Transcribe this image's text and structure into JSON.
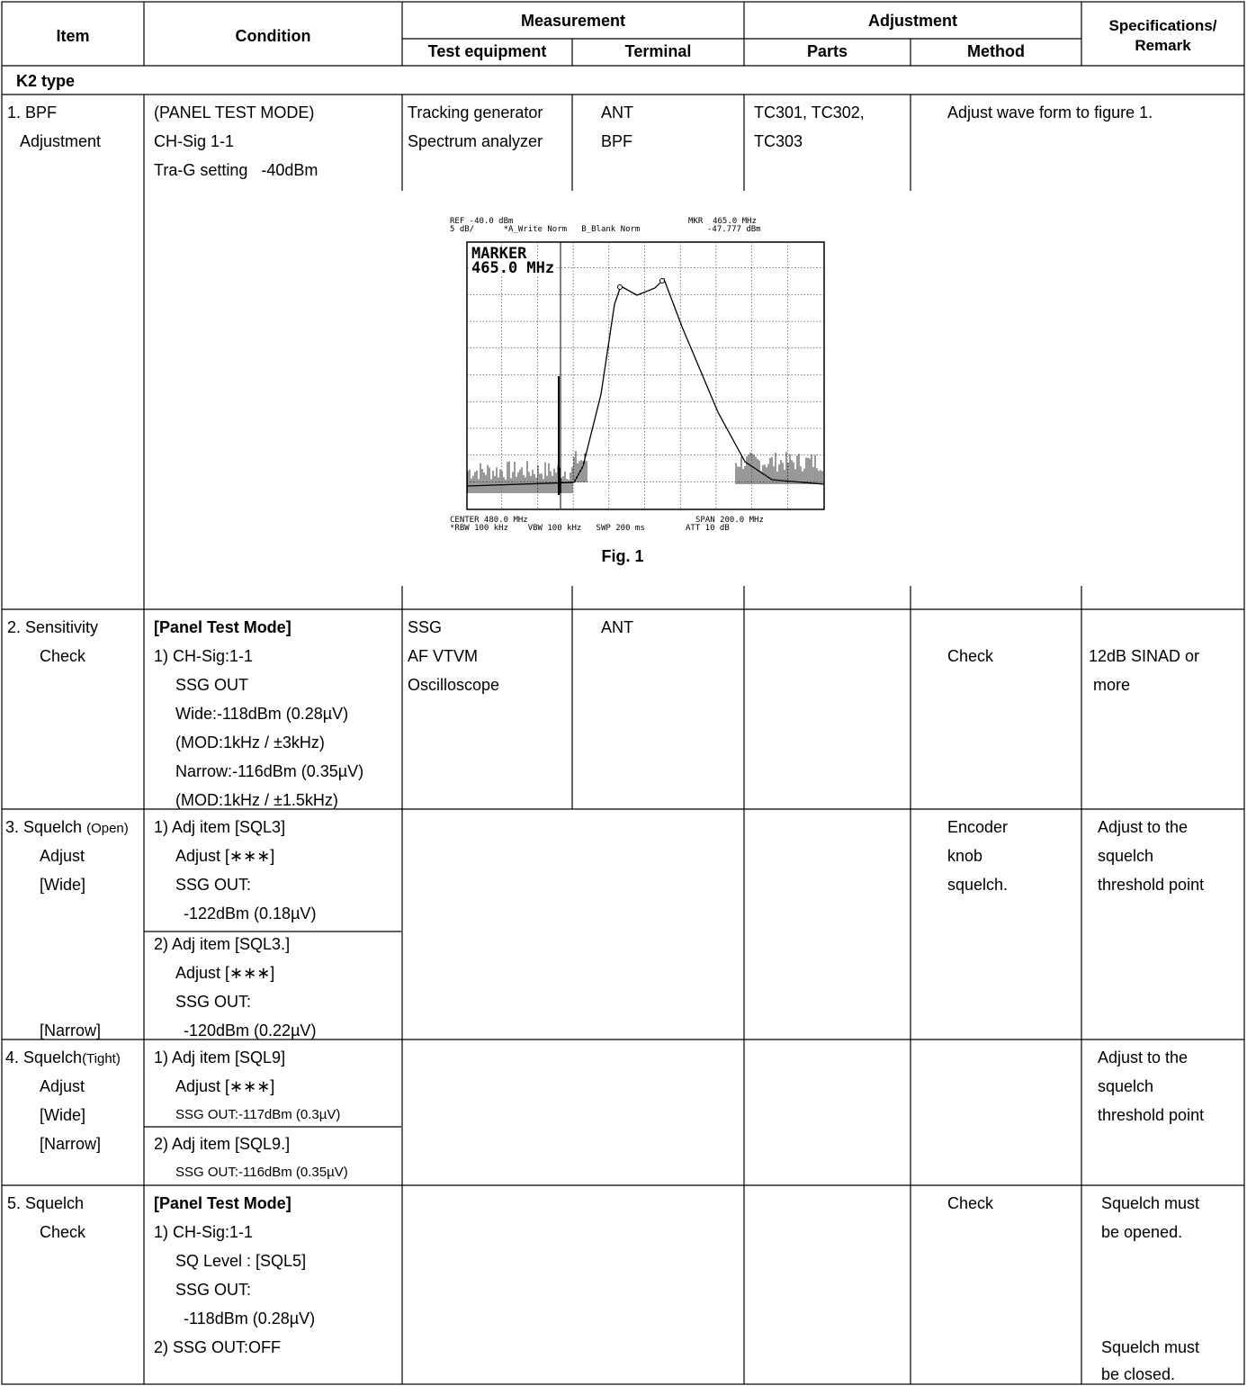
{
  "header": {
    "item": "Item",
    "condition": "Condition",
    "measurement": "Measurement",
    "adjustment": "Adjustment",
    "specifications": "Specifications/",
    "remark": "Remark",
    "test_equipment": "Test equipment",
    "terminal": "Terminal",
    "parts": "Parts",
    "method": "Method"
  },
  "section": "K2 type",
  "rows": {
    "r1": {
      "item": [
        "1. BPF",
        "Adjustment"
      ],
      "condition": [
        "(PANEL TEST MODE)",
        "CH-Sig 1-1",
        "Tra-G setting   -40dBm"
      ],
      "equipment": [
        "Tracking generator",
        "Spectrum analyzer"
      ],
      "terminal": [
        "ANT",
        "BPF"
      ],
      "parts": [
        "TC301, TC302,",
        "TC303"
      ],
      "method": "Adjust wave form to figure 1."
    },
    "figure": {
      "caption": "Fig. 1",
      "top_left": [
        "REF -40.0 dBm",
        "5 dB/      *A_Write Norm   B_Blank Norm"
      ],
      "top_right": [
        "MKR  465.0 MHz",
        "-47.777 dBm"
      ],
      "marker": [
        "MARKER",
        "465.0 MHz"
      ],
      "bottom_left": [
        "CENTER 480.0 MHz",
        "*RBW 100 kHz    VBW 100 kHz   SWP 200 ms"
      ],
      "bottom_right": [
        "SPAN 200.0 MHz",
        "ATT 10 dB"
      ]
    },
    "r2": {
      "item": [
        "2. Sensitivity",
        "Check"
      ],
      "condition_title": "[Panel Test Mode]",
      "condition": [
        "1) CH-Sig:1-1",
        "SSG OUT",
        "Wide:-118dBm (0.28µV)",
        "(MOD:1kHz / ±3kHz)",
        "Narrow:-116dBm (0.35µV)",
        "(MOD:1kHz / ±1.5kHz)"
      ],
      "equipment": [
        "SSG",
        "AF VTVM",
        "Oscilloscope"
      ],
      "terminal": "ANT",
      "method": "Check",
      "spec": [
        "12dB SINAD or",
        "more"
      ]
    },
    "r3": {
      "item_main": "3. Squelch",
      "item_small": "(Open)",
      "item": [
        "Adjust",
        "[Wide]",
        "[Narrow]"
      ],
      "cond_a": [
        "1) Adj item [SQL3]",
        "Adjust [∗∗∗]",
        "SSG OUT:",
        "-122dBm (0.18µV)"
      ],
      "cond_b": [
        "2) Adj item [SQL3.]",
        "Adjust [∗∗∗]",
        "SSG OUT:",
        "-120dBm (0.22µV)"
      ],
      "method": [
        "Encoder",
        "knob",
        "squelch."
      ],
      "spec": [
        "Adjust to the",
        "squelch",
        "threshold point"
      ]
    },
    "r4": {
      "item_main": "4. Squelch",
      "item_small": "(Tight)",
      "item": [
        "Adjust",
        "[Wide]",
        "[Narrow]"
      ],
      "cond_a": [
        "1) Adj item [SQL9]",
        "Adjust [∗∗∗]",
        "SSG OUT:-117dBm (0.3µV)"
      ],
      "cond_b": [
        "2) Adj item [SQL9.]",
        "SSG OUT:-116dBm (0.35µV)"
      ],
      "spec": [
        "Adjust to the",
        "squelch",
        "threshold point"
      ]
    },
    "r5": {
      "item": [
        "5. Squelch",
        "Check"
      ],
      "condition_title": "[Panel Test Mode]",
      "condition": [
        "1) CH-Sig:1-1",
        "SQ Level : [SQL5]",
        "SSG OUT:",
        "-118dBm (0.28µV)",
        "2) SSG OUT:OFF"
      ],
      "method": "Check",
      "spec_a": [
        "Squelch must",
        "be opened."
      ],
      "spec_b": [
        "Squelch must",
        "be closed."
      ]
    }
  }
}
